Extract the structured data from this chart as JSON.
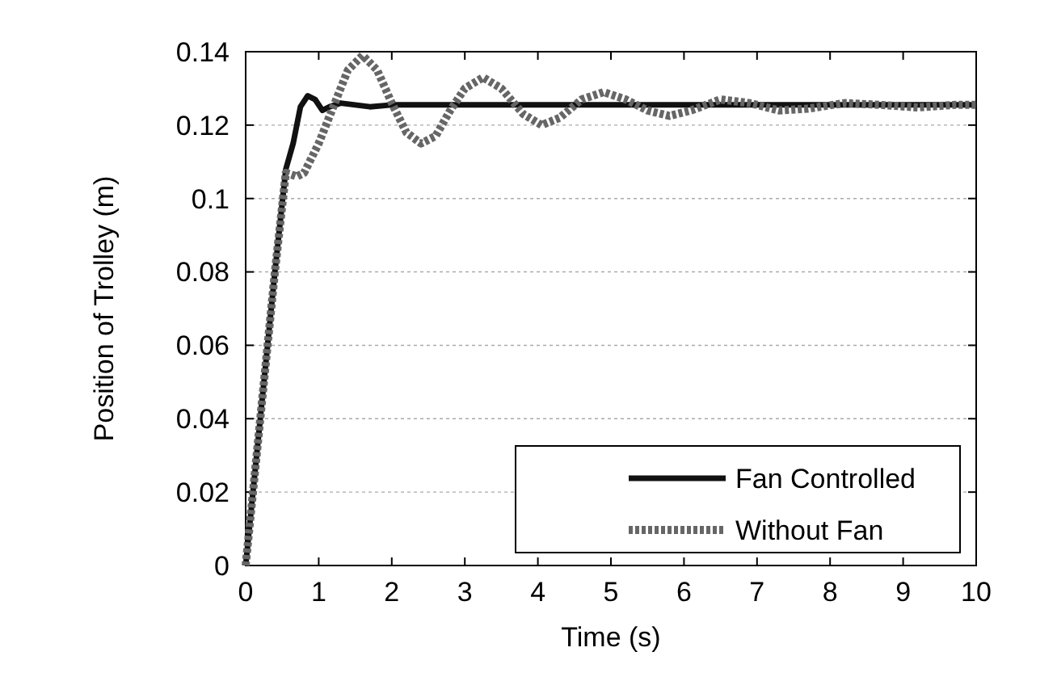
{
  "chart_data": {
    "type": "line",
    "xlabel": "Time  (s)",
    "ylabel": "Position of Trolley (m)",
    "xlim": [
      0,
      10
    ],
    "xticks": [
      0,
      1,
      2,
      3,
      4,
      5,
      6,
      7,
      8,
      9,
      10
    ],
    "ylim": [
      0,
      0.14
    ],
    "yticks": [
      0,
      0.02,
      0.04,
      0.06,
      0.08,
      0.1,
      0.12,
      0.14
    ],
    "grid": "y",
    "legend": "bottom right",
    "marker": "none",
    "series": [
      {
        "name": "Fan Controlled",
        "color": "#111111",
        "line_style": "solid",
        "x": [
          0,
          0.2,
          0.4,
          0.55,
          0.65,
          0.75,
          0.85,
          0.95,
          1.05,
          1.15,
          1.3,
          1.5,
          1.7,
          2,
          3,
          10
        ],
        "values": [
          0,
          0.04,
          0.08,
          0.108,
          0.115,
          0.125,
          0.128,
          0.127,
          0.124,
          0.125,
          0.126,
          0.1255,
          0.125,
          0.1255,
          0.1255,
          0.1255
        ]
      },
      {
        "name": "Without Fan",
        "color": "#666666",
        "line_style": "dotted",
        "x": [
          0,
          0.2,
          0.4,
          0.55,
          0.7,
          0.8,
          1,
          1.2,
          1.4,
          1.6,
          1.8,
          2,
          2.2,
          2.4,
          2.6,
          2.8,
          3,
          3.25,
          3.5,
          3.8,
          4.05,
          4.3,
          4.6,
          4.9,
          5.2,
          5.5,
          5.8,
          6.1,
          6.5,
          6.9,
          7.3,
          7.7,
          8.2,
          8.7,
          9.2,
          9.7,
          10
        ],
        "values": [
          0,
          0.04,
          0.08,
          0.107,
          0.106,
          0.107,
          0.115,
          0.125,
          0.135,
          0.139,
          0.135,
          0.126,
          0.118,
          0.115,
          0.117,
          0.124,
          0.13,
          0.133,
          0.13,
          0.123,
          0.12,
          0.122,
          0.127,
          0.129,
          0.127,
          0.124,
          0.1225,
          0.124,
          0.127,
          0.126,
          0.124,
          0.1245,
          0.126,
          0.1255,
          0.1248,
          0.1255,
          0.1255
        ]
      }
    ]
  }
}
